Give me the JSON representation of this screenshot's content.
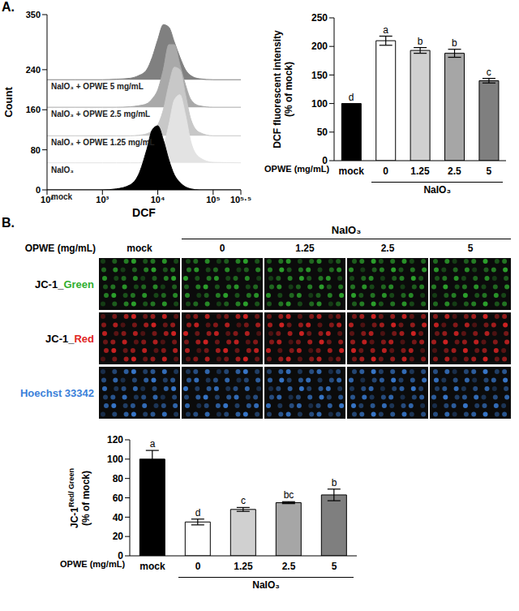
{
  "panel_labels": [
    "A.",
    "B."
  ],
  "chart_data": [
    {
      "type": "area",
      "xlabel": "DCF",
      "ylabel": "Count",
      "log": "x",
      "xlim": [
        100,
        316228
      ],
      "xticks": [
        {
          "value": 100,
          "label": "10²"
        },
        {
          "value": 1000,
          "label": "10³"
        },
        {
          "value": 10000,
          "label": "10⁴"
        },
        {
          "value": 100000,
          "label": "10⁵"
        },
        {
          "value": 316228,
          "label": "10⁵·⁵"
        }
      ],
      "ylim": [
        0,
        350
      ],
      "yticks": [
        0,
        80,
        160,
        240,
        350
      ],
      "x": [
        100,
        316,
        1000,
        1778,
        3162,
        4467,
        6310,
        7943,
        10000,
        12589,
        15849,
        19953,
        25119,
        31623,
        39811,
        56234,
        100000,
        316228
      ],
      "series": [
        {
          "name": "NaIO₃ + OPWE 5 mg/mL",
          "color": "#808080",
          "values": [
            220,
            220,
            220,
            221,
            223,
            228,
            240,
            265,
            300,
            330,
            325,
            295,
            265,
            240,
            228,
            222,
            220,
            220
          ]
        },
        {
          "name": "NaIO₃ + OPWE 2.5 mg/mL",
          "color": "#a9a9a9",
          "values": [
            165,
            165,
            165,
            165,
            166,
            168,
            172,
            182,
            200,
            240,
            290,
            290,
            250,
            210,
            180,
            168,
            165,
            165
          ]
        },
        {
          "name": "NaIO₃ + OPWE 1.25 mg/mL",
          "color": "#c8c8c8",
          "values": [
            108,
            108,
            108,
            108,
            108,
            109,
            112,
            118,
            130,
            160,
            210,
            245,
            240,
            190,
            140,
            115,
            108,
            108
          ]
        },
        {
          "name": "NaIO₃",
          "color": "#e3e3e3",
          "values": [
            54,
            54,
            54,
            54,
            54,
            54,
            55,
            58,
            65,
            85,
            130,
            180,
            190,
            150,
            95,
            65,
            55,
            54
          ]
        },
        {
          "name": "mock",
          "color": "#000000",
          "values": [
            0,
            0,
            0,
            2,
            10,
            30,
            80,
            120,
            128,
            100,
            60,
            30,
            15,
            6,
            2,
            0,
            0,
            0
          ]
        }
      ]
    },
    {
      "type": "bar",
      "ylabel": "DCF fluorescent intensity",
      "ylabel_unit": "(% of mock)",
      "category_label": "OPWE (mg/mL)",
      "group_label": "NaIO₃",
      "group_categories": [
        "0",
        "1.25",
        "2.5",
        "5"
      ],
      "categories": [
        "mock",
        "0",
        "1.25",
        "2.5",
        "5"
      ],
      "values": [
        100,
        210,
        193,
        188,
        140
      ],
      "errors": [
        0,
        8,
        5,
        7,
        4
      ],
      "letters": [
        "d",
        "a",
        "b",
        "b",
        "c"
      ],
      "colors": [
        "#000000",
        "#ffffff",
        "#d0d0d0",
        "#a6a6a6",
        "#7f7f7f"
      ],
      "ylim": [
        0,
        250
      ],
      "yticks": [
        0,
        50,
        100,
        150,
        200,
        250
      ]
    },
    {
      "type": "bar",
      "ylabel": "JC-1",
      "ylabel_superscript": "Red/ Green",
      "ylabel_unit": "(% of mock)",
      "category_label": "OPWE (mg/mL)",
      "group_label": "NaIO₃",
      "group_categories": [
        "0",
        "1.25",
        "2.5",
        "5"
      ],
      "categories": [
        "mock",
        "0",
        "1.25",
        "2.5",
        "5"
      ],
      "values": [
        100,
        35,
        48,
        55,
        63
      ],
      "errors": [
        9,
        3,
        2,
        1,
        6
      ],
      "letters": [
        "a",
        "d",
        "c",
        "bc",
        "b"
      ],
      "colors": [
        "#000000",
        "#ffffff",
        "#d0d0d0",
        "#a6a6a6",
        "#7f7f7f"
      ],
      "ylim": [
        0,
        120
      ],
      "yticks": [
        0,
        20,
        40,
        60,
        80,
        100,
        120
      ]
    }
  ],
  "image_grid": {
    "column_header": "OPWE (mg/mL)",
    "group_label": "NaIO₃",
    "columns": [
      "mock",
      "0",
      "1.25",
      "2.5",
      "5"
    ],
    "group_columns": [
      "0",
      "1.25",
      "2.5",
      "5"
    ],
    "rows": [
      {
        "label": "JC-1_Green",
        "color": "#2fae2f"
      },
      {
        "label": "JC-1_Red",
        "color": "#e02424"
      },
      {
        "label": "Hoechst 33342",
        "color": "#3b7fd9"
      }
    ]
  }
}
